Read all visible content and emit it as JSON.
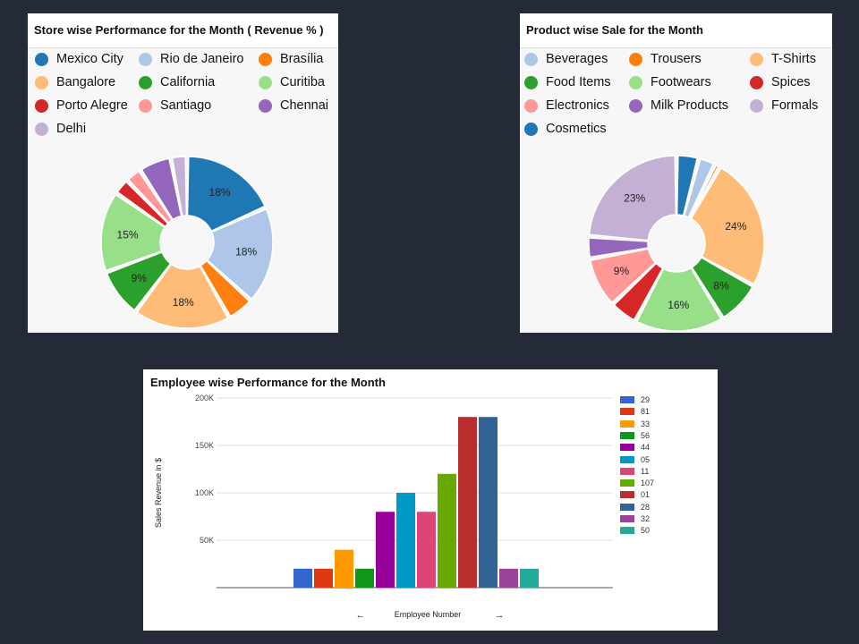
{
  "chart_data": [
    {
      "type": "pie",
      "title": "Store wise Performance for the Month ( Revenue % )",
      "legend_position": "top",
      "slices": [
        {
          "name": "Mexico City",
          "value": 18,
          "color": "#1f77b4",
          "label": "18%"
        },
        {
          "name": "Rio de Janeiro",
          "value": 18,
          "color": "#aec7e8",
          "label": "18%"
        },
        {
          "name": "Brasília",
          "value": 5,
          "color": "#ff7f0e",
          "label": ""
        },
        {
          "name": "Bangalore",
          "value": 18,
          "color": "#ffbb78",
          "label": "18%"
        },
        {
          "name": "California",
          "value": 9,
          "color": "#2ca02c",
          "label": "9%"
        },
        {
          "name": "Curitiba",
          "value": 15,
          "color": "#98df8a",
          "label": "15%"
        },
        {
          "name": "Porto Alegre",
          "value": 3,
          "color": "#d62728",
          "label": ""
        },
        {
          "name": "Santiago",
          "value": 3,
          "color": "#ff9896",
          "label": ""
        },
        {
          "name": "Chennai",
          "value": 6,
          "color": "#9467bd",
          "label": ""
        },
        {
          "name": "Delhi",
          "value": 3,
          "color": "#c5b0d5",
          "label": ""
        }
      ]
    },
    {
      "type": "pie",
      "title": "Product wise Sale for the Month",
      "legend_position": "top",
      "slices": [
        {
          "name": "Cosmetics",
          "value": 4,
          "color": "#1f77b4",
          "label": ""
        },
        {
          "name": "Beverages",
          "value": 3,
          "color": "#aec7e8",
          "label": ""
        },
        {
          "name": "Trousers",
          "value": 1,
          "color": "#ff7f0e",
          "label": ""
        },
        {
          "name": "T-Shirts",
          "value": 24,
          "color": "#ffbb78",
          "label": "24%"
        },
        {
          "name": "Food Items",
          "value": 8,
          "color": "#2ca02c",
          "label": "8%"
        },
        {
          "name": "Footwears",
          "value": 16,
          "color": "#98df8a",
          "label": "16%"
        },
        {
          "name": "Spices",
          "value": 5,
          "color": "#d62728",
          "label": ""
        },
        {
          "name": "Electronics",
          "value": 9,
          "color": "#ff9896",
          "label": "9%"
        },
        {
          "name": "Milk Products",
          "value": 4,
          "color": "#9467bd",
          "label": ""
        },
        {
          "name": "Formals",
          "value": 23,
          "color": "#c5b0d5",
          "label": "23%"
        }
      ]
    },
    {
      "type": "bar",
      "title": "Employee wise Performance for the Month",
      "xlabel": "Employee Number",
      "ylabel": "Sales Revenue in $",
      "ylim": [
        0,
        200000
      ],
      "yticks": [
        50000,
        100000,
        150000,
        200000
      ],
      "ytick_labels": [
        "50K",
        "100K",
        "150K",
        "200K"
      ],
      "grid": true,
      "legend_position": "right",
      "nav": {
        "prev": "←",
        "next": "→"
      },
      "series": [
        {
          "name": "29",
          "value": 20000,
          "color": "#3366cc"
        },
        {
          "name": "81",
          "value": 20000,
          "color": "#dc3912"
        },
        {
          "name": "33",
          "value": 40000,
          "color": "#ff9900"
        },
        {
          "name": "56",
          "value": 20000,
          "color": "#109618"
        },
        {
          "name": "44",
          "value": 80000,
          "color": "#990099"
        },
        {
          "name": "05",
          "value": 100000,
          "color": "#0099c6"
        },
        {
          "name": "11",
          "value": 80000,
          "color": "#dd4477"
        },
        {
          "name": "107",
          "value": 120000,
          "color": "#66aa00"
        },
        {
          "name": "01",
          "value": 180000,
          "color": "#b82e2e"
        },
        {
          "name": "28",
          "value": 180000,
          "color": "#316395"
        },
        {
          "name": "32",
          "value": 20000,
          "color": "#994499"
        },
        {
          "name": "50",
          "value": 20000,
          "color": "#22aa99"
        }
      ]
    }
  ]
}
